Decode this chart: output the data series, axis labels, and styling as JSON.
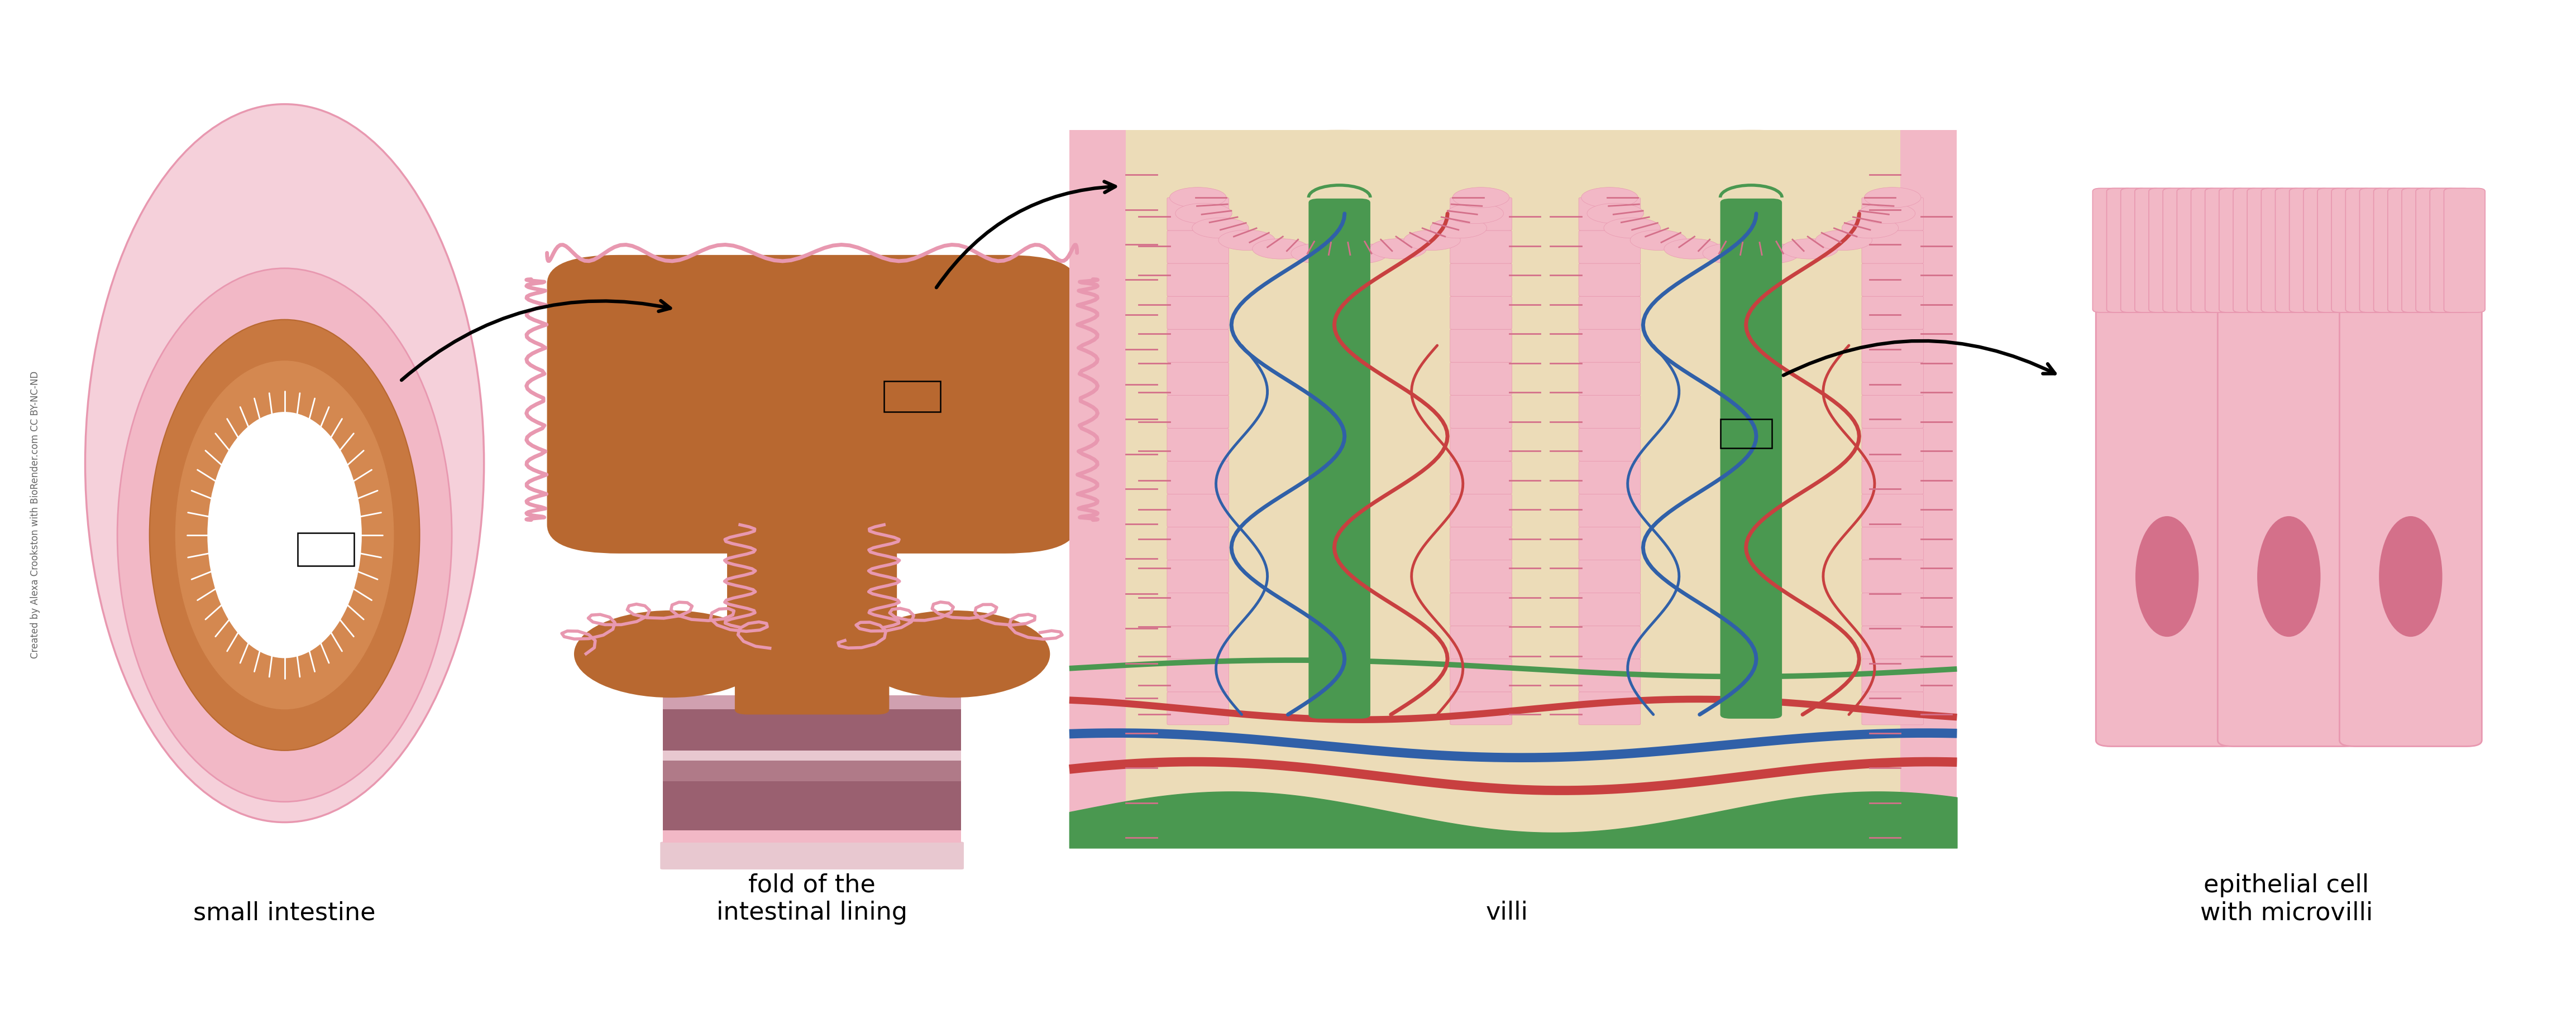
{
  "bg_color": "#ffffff",
  "labels": [
    "small intestine",
    "fold of the\nintestinal lining",
    "villi",
    "epithelial cell\nwith microvilli"
  ],
  "colors": {
    "pink_light": "#f2b8c6",
    "pink_mid": "#e898b0",
    "pink_dark": "#d4708a",
    "pink_outer": "#f5d0da",
    "pink_bg": "#f8dce4",
    "orange_dark": "#b86830",
    "orange_mid": "#c87840",
    "orange_light": "#d48850",
    "mauve_dark": "#9a6070",
    "mauve_mid": "#b07a88",
    "mauve_light": "#d0a0b0",
    "mauve_pale": "#e8c8d0",
    "cream": "#ecdcb8",
    "cream_light": "#f0e8d0",
    "green": "#4a9850",
    "blue": "#3060a8",
    "red_dark": "#b83030",
    "red": "#c84040",
    "purple": "#7060a0",
    "white": "#ffffff",
    "black": "#111111"
  },
  "watermark": "Created by Alexa Crookston with BioRender.com CC BY-NC-ND",
  "font_size_label": 32,
  "font_size_watermark": 12
}
